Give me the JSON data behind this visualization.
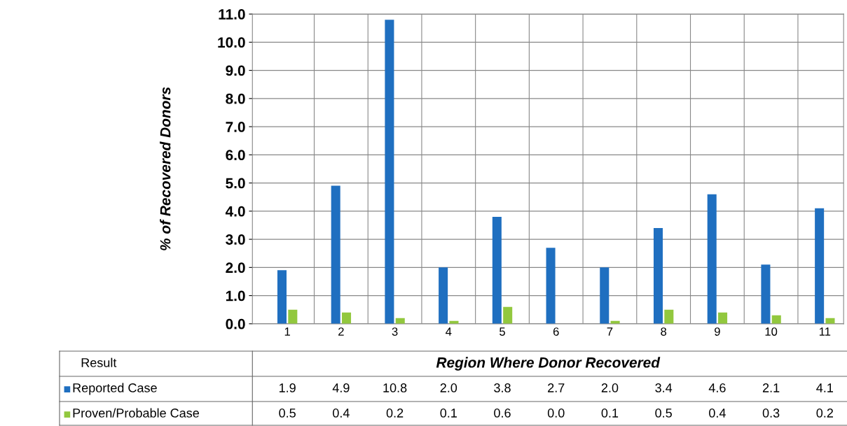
{
  "chart_data": {
    "type": "bar",
    "ylabel": "% of Recovered Donors",
    "xlabel": "Region Where Donor Recovered",
    "annotations": [
      "Result"
    ],
    "categories": [
      "1",
      "2",
      "3",
      "4",
      "5",
      "6",
      "7",
      "8",
      "9",
      "10",
      "11"
    ],
    "series": [
      {
        "name": "Reported Case",
        "color": "#1f6fc0",
        "values": [
          1.9,
          4.9,
          10.8,
          2.0,
          3.8,
          2.7,
          2.0,
          3.4,
          4.6,
          2.1,
          4.1
        ],
        "value_labels": [
          "1.9",
          "4.9",
          "10.8",
          "2.0",
          "3.8",
          "2.7",
          "2.0",
          "3.4",
          "4.6",
          "2.1",
          "4.1"
        ]
      },
      {
        "name": "Proven/Probable Case",
        "color": "#92c83e",
        "values": [
          0.5,
          0.4,
          0.2,
          0.1,
          0.6,
          0.0,
          0.1,
          0.5,
          0.4,
          0.3,
          0.2
        ],
        "value_labels": [
          "0.5",
          "0.4",
          "0.2",
          "0.1",
          "0.6",
          "0.0",
          "0.1",
          "0.5",
          "0.4",
          "0.3",
          "0.2"
        ]
      }
    ],
    "ylim": [
      0,
      11
    ],
    "yticks": [
      {
        "value": 0,
        "label": "0.0"
      },
      {
        "value": 1,
        "label": "1.0"
      },
      {
        "value": 2,
        "label": "2.0"
      },
      {
        "value": 3,
        "label": "3.0"
      },
      {
        "value": 4,
        "label": "4.0"
      },
      {
        "value": 5,
        "label": "5.0"
      },
      {
        "value": 6,
        "label": "6.0"
      },
      {
        "value": 7,
        "label": "7.0"
      },
      {
        "value": 8,
        "label": "8.0"
      },
      {
        "value": 9,
        "label": "9.0"
      },
      {
        "value": 10,
        "label": "10.0"
      },
      {
        "value": 11,
        "label": "11.0"
      }
    ],
    "grid": true,
    "legend": "bottom"
  }
}
